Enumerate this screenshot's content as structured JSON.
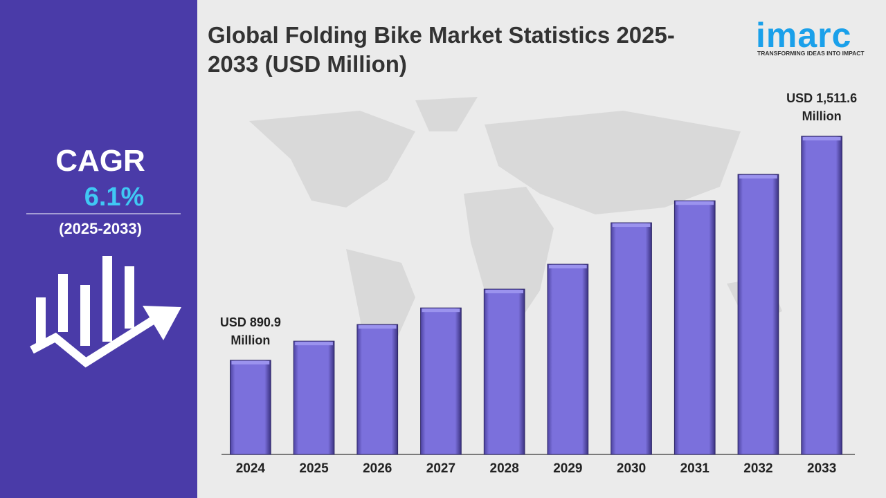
{
  "chart_data": {
    "type": "bar",
    "title": "Global Folding Bike Market Statistics 2025-2033 (USD Million)",
    "categories": [
      "2024",
      "2025",
      "2026",
      "2027",
      "2028",
      "2029",
      "2030",
      "2031",
      "2032",
      "2033"
    ],
    "values": [
      890.9,
      944,
      990,
      1036,
      1088,
      1157,
      1272,
      1333,
      1406,
      1511.6
    ],
    "value_labels": [
      "USD 890.9 Million",
      null,
      null,
      null,
      null,
      null,
      null,
      null,
      null,
      "USD 1,511.6 Million"
    ],
    "color": "#7b70dc",
    "ylim": [
      630,
      1550
    ]
  },
  "sidebar": {
    "label": "CAGR",
    "value": "6.1%",
    "period": "(2025-2033)"
  },
  "logo": {
    "name": "imarc",
    "tagline": "TRANSFORMING IDEAS INTO IMPACT"
  }
}
